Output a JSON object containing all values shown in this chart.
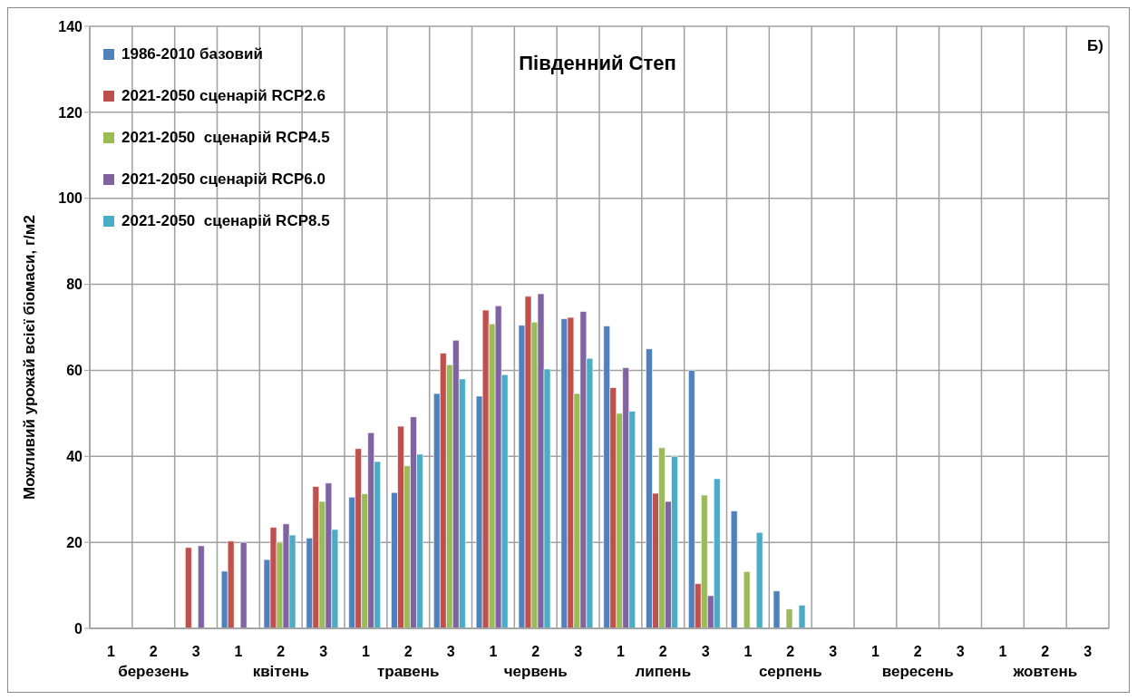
{
  "chart_data": {
    "type": "bar",
    "title": "Південний Степ",
    "ylabel": "Можливий урожай всієї біомаси, г/м2",
    "categories": [
      "1",
      "2",
      "3",
      "1",
      "2",
      "3",
      "1",
      "2",
      "3",
      "1",
      "2",
      "3",
      "1",
      "2",
      "3",
      "1",
      "2",
      "3",
      "1",
      "2",
      "3",
      "1",
      "2",
      "3"
    ],
    "annotations": [
      "Б)",
      "березень",
      "квітень",
      "травень",
      "червень",
      "липень",
      "серпень",
      "вересень",
      "жовтень"
    ],
    "series": [
      {
        "name": "1986-2010 базовий",
        "color": "#4f81bd",
        "values": [
          null,
          null,
          null,
          13.3,
          16,
          21,
          30.5,
          31.6,
          54.6,
          54,
          70.5,
          72,
          70.3,
          65,
          60,
          27.3,
          8.7,
          null,
          null,
          null,
          null,
          null,
          null,
          null
        ]
      },
      {
        "name": "2021-2050 сценарій RCP2.6",
        "color": "#c0504d",
        "values": [
          null,
          null,
          18.8,
          20.3,
          23.5,
          33,
          41.8,
          47,
          64,
          74,
          77.2,
          72.3,
          56,
          31.4,
          10.4,
          null,
          null,
          null,
          null,
          null,
          null,
          null,
          null,
          null
        ]
      },
      {
        "name": "2021-2050  сценарій RCP4.5",
        "color": "#9bbb59",
        "values": [
          null,
          null,
          null,
          null,
          20,
          29.5,
          31.3,
          37.8,
          61.3,
          70.8,
          71.2,
          54.6,
          50,
          42,
          31,
          13.2,
          4.5,
          null,
          null,
          null,
          null,
          null,
          null,
          null
        ]
      },
      {
        "name": "2021-2050 сценарій RCP6.0",
        "color": "#8064a2",
        "values": [
          null,
          null,
          19.2,
          20,
          24.3,
          33.8,
          45.5,
          49.2,
          67,
          75,
          77.8,
          73.7,
          60.6,
          29.5,
          7.6,
          null,
          null,
          null,
          null,
          null,
          null,
          null,
          null,
          null
        ]
      },
      {
        "name": "2021-2050  сценарій RCP8.5",
        "color": "#4bacc6",
        "values": [
          null,
          null,
          null,
          null,
          21.7,
          23,
          38.8,
          40.5,
          58,
          59,
          60.3,
          62.8,
          50.5,
          40,
          34.8,
          22.3,
          5.4,
          null,
          null,
          null,
          null,
          null,
          null,
          null
        ]
      }
    ],
    "ylim": [
      0,
      140
    ],
    "yticks": [
      0,
      20,
      40,
      60,
      80,
      100,
      120,
      140
    ],
    "grid": true,
    "legend": "top left"
  }
}
